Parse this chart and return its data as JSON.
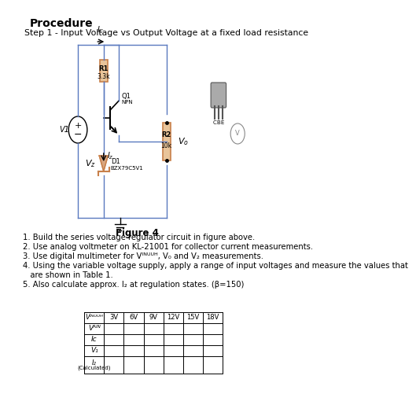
{
  "title": "Procedure",
  "step_text": "Step 1 - Input Voltage vs Output Voltage at a fixed load resistance",
  "figure_label": "Figure 4",
  "instructions": [
    "1. Build the series voltage regulator circuit in figure above.",
    "2. Use analog voltmeter on KL-21001 for collector current measurements.",
    "3. Use digital multimeter for Vᴵᴺᵁᵁᴴ, V₀ and V₂ measurements.",
    "4. Using the variable voltage supply, apply a range of input voltages and measure the values that",
    "   are shown in Table 1.",
    "5. Also calculate approx. I₂ at regulation states. (β=150)"
  ],
  "table_cols": [
    "Vᴵᴺᵁᵁᴴ",
    "3V",
    "6V",
    "9V",
    "12V",
    "15V",
    "18V"
  ],
  "table_row_labels": [
    "Vᴬᴵᴺ",
    "Iᴄ",
    "V₁",
    "I₂"
  ],
  "table_row_sub": [
    "",
    "",
    "",
    "(Calculated)"
  ],
  "bg_color": "#ffffff",
  "text_color": "#000000",
  "circuit_color": "#000000",
  "resistor_color": "#c8804a",
  "wire_color": "#5a7abf"
}
